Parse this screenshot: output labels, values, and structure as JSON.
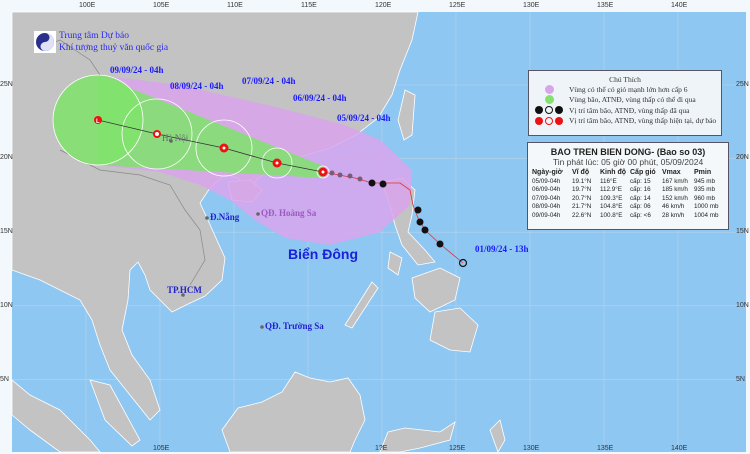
{
  "header": {
    "org_line1": "Trung tâm Dự báo",
    "org_line2": "Khí tượng thuỷ văn quốc gia"
  },
  "axes": {
    "top": [
      "100E",
      "105E",
      "110E",
      "115E",
      "120E",
      "125E",
      "130E",
      "135E",
      "140E"
    ],
    "bottom": [
      "105E",
      "1?E",
      "125E",
      "130E",
      "135E",
      "140E"
    ],
    "right": [
      "25N",
      "20N",
      "15N",
      "10N",
      "5N"
    ],
    "left": [
      "25N",
      "20N",
      "15N",
      "10N",
      "5N"
    ]
  },
  "track_labels": [
    "09/09/24 - 04h",
    "08/09/24 - 04h",
    "07/09/24 - 04h",
    "06/09/24 - 04h",
    "05/09/24 - 04h",
    "01/09/24 - 13h"
  ],
  "places": {
    "hanoi": "Hà Nội",
    "danang": "Đ.Nẵng",
    "hoangsa": "QĐ. Hoàng Sa",
    "hcm": "TP.HCM",
    "truongsa": "QĐ. Trường Sa",
    "sea": "Biển Đông"
  },
  "legend": {
    "title": "Chú Thích",
    "items": [
      "Vùng có thể có gió mạnh lớn hơn cấp 6",
      "Vùng bão, ATNĐ, vùng thấp có thể đi qua",
      "Vị trí tâm bão, ATNĐ, vùng thấp đã qua",
      "Vị trí tâm bão, ATNĐ, vùng thấp hiện tại, dự báo"
    ]
  },
  "bulletin": {
    "title": "BAO TREN BIEN DONG- (Bao so 03)",
    "issued": "Tin phát lúc: 05 giờ 00 phút, 05/09/2024",
    "columns": [
      "Ngày-giờ",
      "Vĩ độ",
      "Kinh độ",
      "Cấp gió",
      "Vmax",
      "Pmin"
    ],
    "rows": [
      [
        "05/09-04h",
        "19.1°N",
        "116°E",
        "cấp: 15",
        "167 km/h",
        "945 mb"
      ],
      [
        "06/09-04h",
        "19.7°N",
        "112.9°E",
        "cấp: 16",
        "185 km/h",
        "935 mb"
      ],
      [
        "07/09-04h",
        "20.7°N",
        "109.3°E",
        "cấp: 14",
        "152 km/h",
        "960 mb"
      ],
      [
        "08/09-04h",
        "21.7°N",
        "104.8°E",
        "cấp: 06",
        "46 km/h",
        "1000 mb"
      ],
      [
        "09/09-04h",
        "22.6°N",
        "100.8°E",
        "cấp: <6",
        "28 km/h",
        "1004 mb"
      ]
    ]
  },
  "colors": {
    "ocean": "#8fc7f3",
    "land": "#c3c3c3",
    "wind_zone": "#d9a4ec",
    "storm_zone": "#86e070",
    "forecast": "#ee1111",
    "past": "#111111"
  }
}
